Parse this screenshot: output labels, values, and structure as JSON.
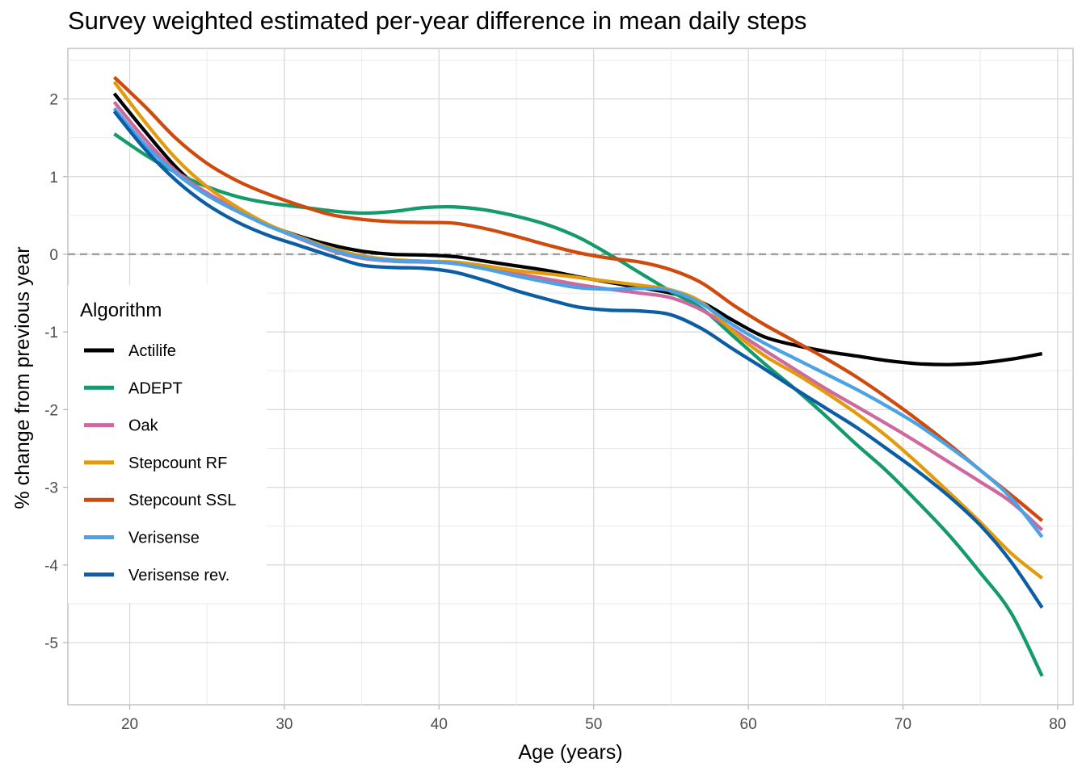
{
  "chart_data": {
    "type": "line",
    "title": "Survey weighted estimated per-year difference in mean daily steps",
    "xlabel": "Age (years)",
    "ylabel": "% change from previous year",
    "xlim": [
      16,
      81
    ],
    "ylim": [
      -5.8,
      2.65
    ],
    "xticks": [
      20,
      30,
      40,
      50,
      60,
      70,
      80
    ],
    "yticks": [
      -5,
      -4,
      -3,
      -2,
      -1,
      0,
      1,
      2
    ],
    "grid": true,
    "reference_line": {
      "y": 0,
      "style": "dashed"
    },
    "legend": {
      "title": "Algorithm",
      "position": "left"
    },
    "x": [
      19,
      21,
      23,
      25,
      27,
      29,
      31,
      33,
      35,
      37,
      39,
      41,
      43,
      45,
      47,
      49,
      51,
      53,
      55,
      57,
      59,
      61,
      63,
      65,
      67,
      69,
      71,
      73,
      75,
      77,
      79
    ],
    "series": [
      {
        "name": "Actilife",
        "color": "#000000",
        "values": [
          2.07,
          1.58,
          1.12,
          0.77,
          0.55,
          0.37,
          0.23,
          0.12,
          0.04,
          0.0,
          -0.01,
          -0.03,
          -0.09,
          -0.15,
          -0.21,
          -0.29,
          -0.36,
          -0.43,
          -0.5,
          -0.62,
          -0.85,
          -1.06,
          -1.17,
          -1.25,
          -1.31,
          -1.37,
          -1.41,
          -1.42,
          -1.4,
          -1.35,
          -1.28
        ]
      },
      {
        "name": "ADEPT",
        "color": "#149a6b",
        "values": [
          1.55,
          1.28,
          1.05,
          0.87,
          0.74,
          0.66,
          0.61,
          0.56,
          0.53,
          0.55,
          0.6,
          0.61,
          0.57,
          0.49,
          0.38,
          0.22,
          0.0,
          -0.24,
          -0.48,
          -0.7,
          -1.05,
          -1.4,
          -1.73,
          -2.08,
          -2.45,
          -2.8,
          -3.2,
          -3.62,
          -4.1,
          -4.62,
          -5.43
        ]
      },
      {
        "name": "Oak",
        "color": "#cc6aa0",
        "values": [
          1.96,
          1.48,
          1.07,
          0.79,
          0.57,
          0.37,
          0.2,
          0.05,
          -0.05,
          -0.09,
          -0.1,
          -0.11,
          -0.17,
          -0.25,
          -0.32,
          -0.39,
          -0.45,
          -0.5,
          -0.56,
          -0.72,
          -0.97,
          -1.23,
          -1.48,
          -1.73,
          -1.96,
          -2.19,
          -2.43,
          -2.68,
          -2.93,
          -3.19,
          -3.55
        ]
      },
      {
        "name": "Stepcount RF",
        "color": "#e39b0e",
        "values": [
          2.22,
          1.7,
          1.23,
          0.87,
          0.6,
          0.38,
          0.22,
          0.08,
          -0.02,
          -0.07,
          -0.09,
          -0.1,
          -0.15,
          -0.21,
          -0.25,
          -0.3,
          -0.35,
          -0.4,
          -0.46,
          -0.62,
          -0.99,
          -1.3,
          -1.53,
          -1.78,
          -2.05,
          -2.35,
          -2.7,
          -3.07,
          -3.45,
          -3.85,
          -4.17
        ]
      },
      {
        "name": "Stepcount SSL",
        "color": "#cf4a0c",
        "values": [
          2.28,
          1.9,
          1.49,
          1.17,
          0.94,
          0.77,
          0.63,
          0.51,
          0.45,
          0.42,
          0.41,
          0.4,
          0.33,
          0.23,
          0.12,
          0.02,
          -0.05,
          -0.1,
          -0.2,
          -0.37,
          -0.65,
          -0.9,
          -1.12,
          -1.34,
          -1.58,
          -1.85,
          -2.14,
          -2.45,
          -2.78,
          -3.1,
          -3.43
        ]
      },
      {
        "name": "Verisense",
        "color": "#4ba3e6",
        "values": [
          1.88,
          1.41,
          1.04,
          0.76,
          0.55,
          0.36,
          0.21,
          0.06,
          -0.04,
          -0.08,
          -0.09,
          -0.12,
          -0.19,
          -0.28,
          -0.36,
          -0.43,
          -0.45,
          -0.44,
          -0.47,
          -0.64,
          -0.91,
          -1.14,
          -1.34,
          -1.54,
          -1.74,
          -1.96,
          -2.2,
          -2.48,
          -2.78,
          -3.14,
          -3.64
        ]
      },
      {
        "name": "Verisense rev.",
        "color": "#0c5ea4",
        "values": [
          1.84,
          1.35,
          0.95,
          0.64,
          0.41,
          0.24,
          0.11,
          -0.02,
          -0.14,
          -0.17,
          -0.18,
          -0.23,
          -0.34,
          -0.47,
          -0.58,
          -0.68,
          -0.72,
          -0.73,
          -0.78,
          -0.96,
          -1.22,
          -1.47,
          -1.73,
          -1.98,
          -2.23,
          -2.51,
          -2.8,
          -3.12,
          -3.49,
          -3.96,
          -4.55
        ]
      }
    ]
  }
}
